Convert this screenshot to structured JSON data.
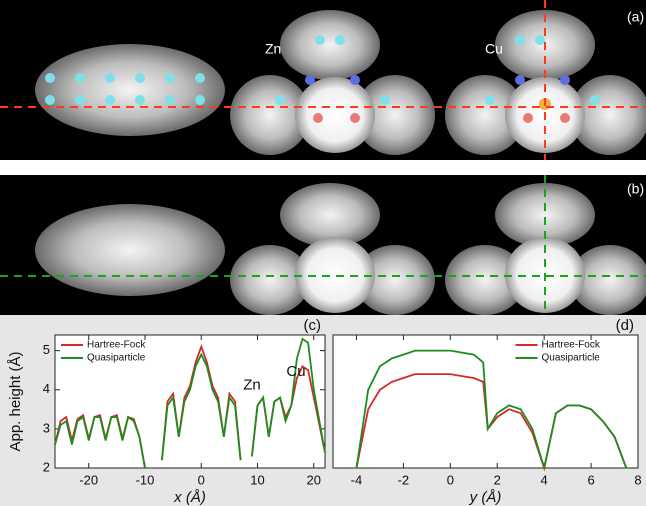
{
  "images": {
    "a": {
      "label": "(a)",
      "labels": [
        "Zn",
        "Cu"
      ]
    },
    "b": {
      "label": "(b)"
    }
  },
  "chart_data": [
    {
      "type": "line",
      "panel_label": "(c)",
      "xlabel": "x (Å)",
      "ylabel": "App. height (Å)",
      "xlim": [
        -26,
        22
      ],
      "ylim": [
        2,
        5.4
      ],
      "xticks": [
        -20,
        -10,
        0,
        10,
        20
      ],
      "yticks": [
        2,
        3,
        4,
        5
      ],
      "legend": "upper left",
      "annotations": [
        "Zn",
        "Cu"
      ],
      "x": [
        -26,
        -25,
        -24,
        -23,
        -22,
        -21,
        -20,
        -19,
        -18,
        -17,
        -16,
        -15,
        -14,
        -13,
        -12,
        -11,
        -10,
        -9,
        -8,
        -7,
        -6,
        -5,
        -4,
        -3,
        -2,
        -1,
        0,
        1,
        2,
        3,
        4,
        5,
        6,
        7,
        8,
        9,
        10,
        11,
        12,
        13,
        14,
        15,
        16,
        17,
        18,
        19,
        20,
        21,
        22
      ],
      "series": [
        {
          "name": "Hartree-Fock",
          "color": "#d42a2a",
          "values": [
            2.6,
            3.2,
            3.3,
            2.7,
            3.25,
            3.35,
            2.75,
            3.3,
            3.35,
            2.75,
            3.3,
            3.35,
            2.75,
            3.3,
            3.25,
            2.8,
            2.0,
            null,
            null,
            2.2,
            3.7,
            3.9,
            2.8,
            3.8,
            4.1,
            4.7,
            5.1,
            4.7,
            4.1,
            3.8,
            2.8,
            3.9,
            3.7,
            2.2,
            null,
            2.3,
            3.6,
            3.8,
            2.8,
            3.7,
            3.8,
            3.3,
            3.6,
            4.3,
            4.6,
            4.5,
            3.8,
            3.1,
            2.4
          ]
        },
        {
          "name": "Quasiparticle",
          "color": "#1e8c1e",
          "values": [
            2.6,
            3.1,
            3.2,
            2.6,
            3.2,
            3.3,
            2.7,
            3.3,
            3.3,
            2.7,
            3.3,
            3.3,
            2.7,
            3.3,
            3.2,
            2.8,
            2.0,
            null,
            null,
            2.2,
            3.6,
            3.8,
            2.8,
            3.7,
            4.0,
            4.6,
            4.9,
            4.6,
            4.0,
            3.7,
            2.8,
            3.8,
            3.6,
            2.2,
            null,
            2.3,
            3.6,
            3.8,
            2.8,
            3.7,
            3.8,
            3.2,
            3.6,
            4.8,
            5.3,
            5.2,
            4.0,
            3.2,
            2.4
          ]
        }
      ]
    },
    {
      "type": "line",
      "panel_label": "(d)",
      "xlabel": "y (Å)",
      "xlim": [
        -5,
        8
      ],
      "ylim": [
        2,
        5.4
      ],
      "xticks": [
        -4,
        -2,
        0,
        2,
        4,
        6,
        8
      ],
      "legend": "upper center",
      "x": [
        -4,
        -3.5,
        -3,
        -2.5,
        -2,
        -1.5,
        -1,
        -0.5,
        0,
        0.5,
        1,
        1.4,
        1.6,
        2,
        2.5,
        3,
        3.5,
        4,
        4.5,
        5,
        5.5,
        6,
        6.5,
        7,
        7.5
      ],
      "series": [
        {
          "name": "Hartree-Fock",
          "color": "#d42a2a",
          "values": [
            2.0,
            3.5,
            4.0,
            4.2,
            4.3,
            4.4,
            4.4,
            4.4,
            4.4,
            4.35,
            4.3,
            4.2,
            3.0,
            3.3,
            3.5,
            3.4,
            2.9,
            2.0,
            3.4,
            3.6,
            3.6,
            3.5,
            3.2,
            2.8,
            2.0
          ]
        },
        {
          "name": "Quasiparticle",
          "color": "#1e8c1e",
          "values": [
            2.0,
            4.0,
            4.6,
            4.8,
            4.9,
            5.0,
            5.0,
            5.0,
            5.0,
            4.95,
            4.9,
            4.7,
            3.0,
            3.4,
            3.6,
            3.5,
            3.0,
            2.0,
            3.4,
            3.6,
            3.6,
            3.5,
            3.2,
            2.8,
            2.0
          ]
        }
      ]
    }
  ]
}
